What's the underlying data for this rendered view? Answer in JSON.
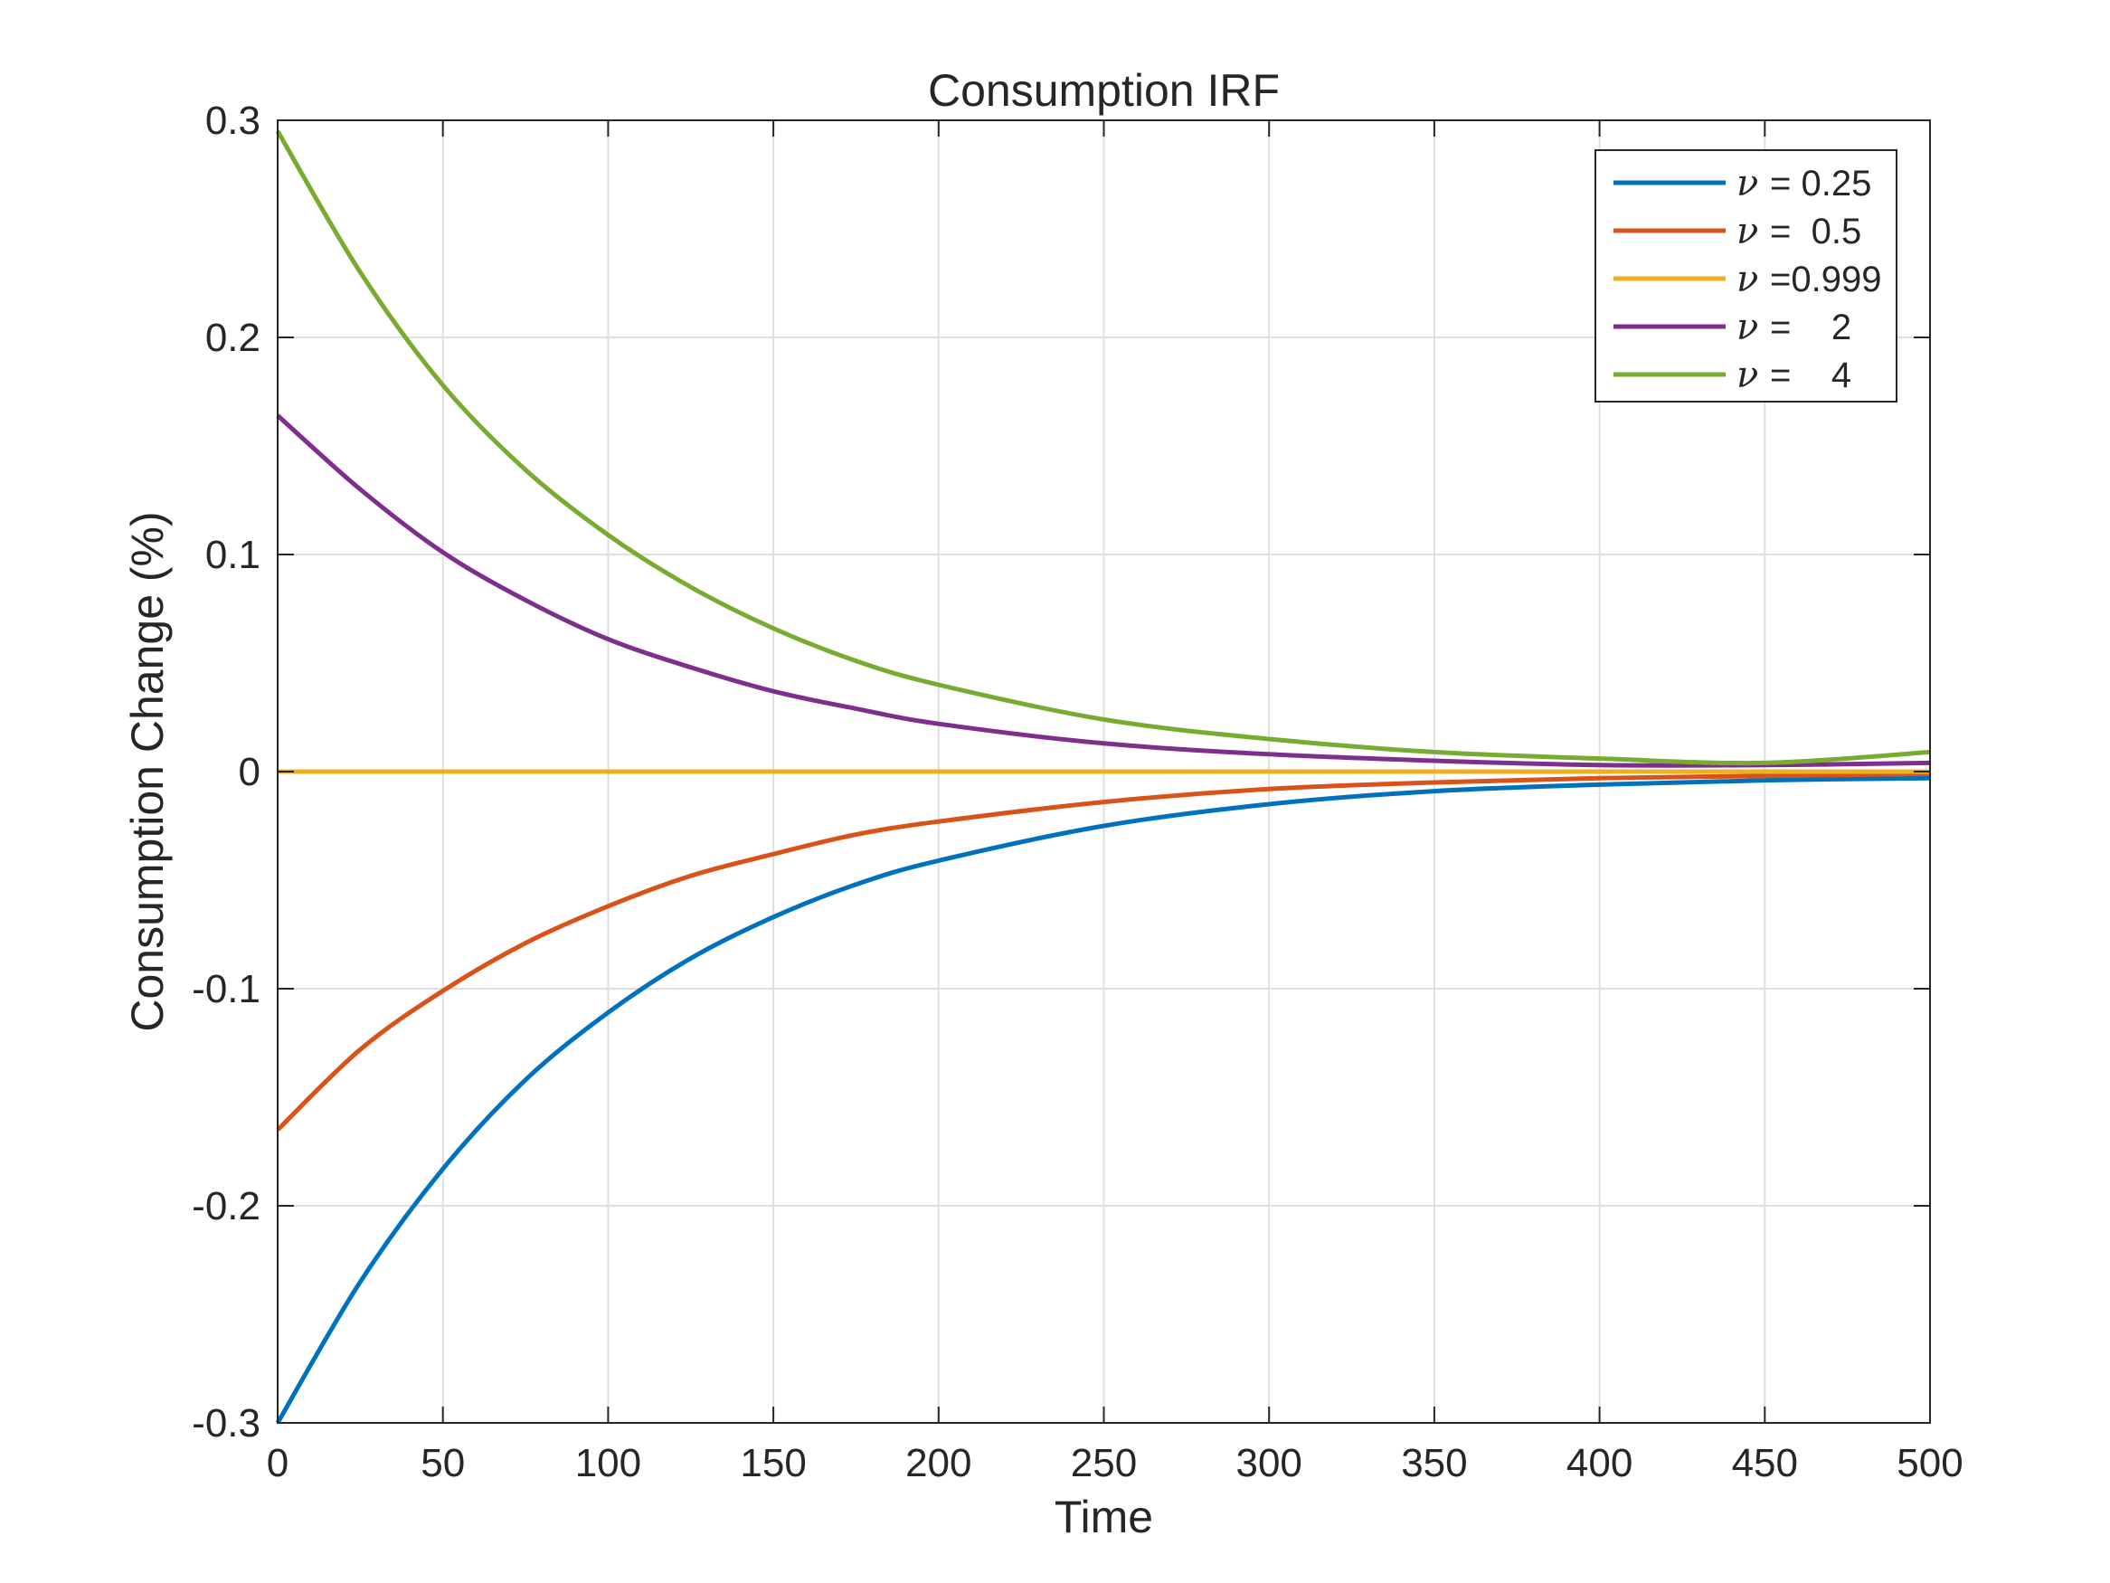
{
  "chart_data": {
    "type": "line",
    "title": "Consumption IRF",
    "xlabel": "Time",
    "ylabel": "Consumption Change (%)",
    "xlim": [
      0,
      500
    ],
    "ylim": [
      -0.3,
      0.3
    ],
    "xticks": [
      0,
      50,
      100,
      150,
      200,
      250,
      300,
      350,
      400,
      450,
      500
    ],
    "xtick_labels": [
      "0",
      "50",
      "100",
      "150",
      "200",
      "250",
      "300",
      "350",
      "400",
      "450",
      "500"
    ],
    "yticks": [
      -0.3,
      -0.2,
      -0.1,
      0,
      0.1,
      0.2,
      0.3
    ],
    "ytick_labels": [
      "-0.3",
      "-0.2",
      "-0.1",
      "0",
      "0.1",
      "0.2",
      "0.3"
    ],
    "grid": true,
    "legend_position": "top-right",
    "x": [
      0,
      25,
      50,
      75,
      100,
      125,
      150,
      175,
      200,
      250,
      300,
      350,
      400,
      450,
      500
    ],
    "series": [
      {
        "name": "ν = 0.25",
        "legend_symbol": "ν",
        "legend_text": "= 0.25",
        "color": "#0072BD",
        "values": [
          -0.3,
          -0.235,
          -0.183,
          -0.142,
          -0.111,
          -0.086,
          -0.067,
          -0.052,
          -0.041,
          -0.025,
          -0.015,
          -0.009,
          -0.006,
          -0.004,
          -0.003
        ]
      },
      {
        "name": "ν =  0.5",
        "legend_symbol": "ν",
        "legend_text": "=  0.5",
        "color": "#D95319",
        "values": [
          -0.165,
          -0.128,
          -0.101,
          -0.079,
          -0.062,
          -0.048,
          -0.038,
          -0.029,
          -0.023,
          -0.014,
          -0.008,
          -0.005,
          -0.003,
          -0.002,
          -0.001
        ]
      },
      {
        "name": "ν =0.999",
        "legend_symbol": "ν",
        "legend_text": "=0.999",
        "color": "#EDB120",
        "values": [
          0,
          0,
          0,
          0,
          0,
          0,
          0,
          0,
          0,
          0,
          0,
          0,
          0,
          0,
          0
        ]
      },
      {
        "name": "ν =    2",
        "legend_symbol": "ν",
        "legend_text": "=    2",
        "color": "#7E2F8E",
        "values": [
          0.164,
          0.13,
          0.101,
          0.079,
          0.061,
          0.048,
          0.037,
          0.029,
          0.022,
          0.013,
          0.008,
          0.005,
          0.003,
          0.003,
          0.004
        ]
      },
      {
        "name": "ν =    4",
        "legend_symbol": "ν",
        "legend_text": "=    4",
        "color": "#77AC30",
        "values": [
          0.295,
          0.23,
          0.178,
          0.139,
          0.109,
          0.085,
          0.066,
          0.051,
          0.04,
          0.024,
          0.015,
          0.009,
          0.006,
          0.004,
          0.009
        ]
      }
    ]
  }
}
